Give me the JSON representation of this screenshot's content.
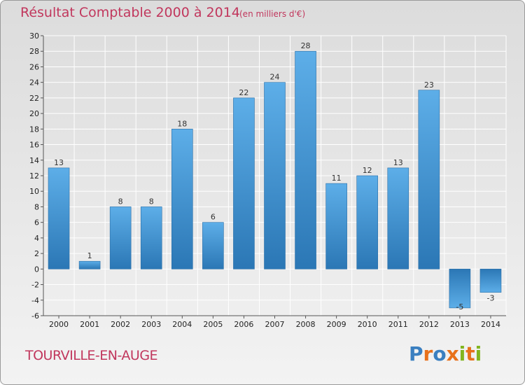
{
  "header": {
    "title": "Résultat Comptable 2000 à 2014",
    "subtitle": "(en milliers d'€)"
  },
  "footer": {
    "commune": "TOURVILLE-EN-AUGE",
    "brand_letters": [
      "P",
      "r",
      "o",
      "x",
      "i",
      "t",
      "i"
    ],
    "brand_colors": [
      "#3a7fc0",
      "#e8711b",
      "#3a7fc0",
      "#e8711b",
      "#82b51f",
      "#e8711b",
      "#82b51f"
    ]
  },
  "chart_data": {
    "type": "bar",
    "title": "Résultat Comptable 2000 à 2014",
    "subtitle": "(en milliers d'€)",
    "xlabel": "",
    "ylabel": "",
    "categories": [
      "2000",
      "2001",
      "2002",
      "2003",
      "2004",
      "2005",
      "2006",
      "2007",
      "2008",
      "2009",
      "2010",
      "2011",
      "2012",
      "2013",
      "2014"
    ],
    "values": [
      13,
      1,
      8,
      8,
      18,
      6,
      22,
      24,
      28,
      11,
      12,
      13,
      23,
      -5,
      -3
    ],
    "ylim": [
      -6,
      30
    ],
    "yticks": [
      -6,
      -4,
      -2,
      0,
      2,
      4,
      6,
      8,
      10,
      12,
      14,
      16,
      18,
      20,
      22,
      24,
      26,
      28,
      30
    ],
    "grid": true,
    "bar_color": "#3d8fd2"
  }
}
